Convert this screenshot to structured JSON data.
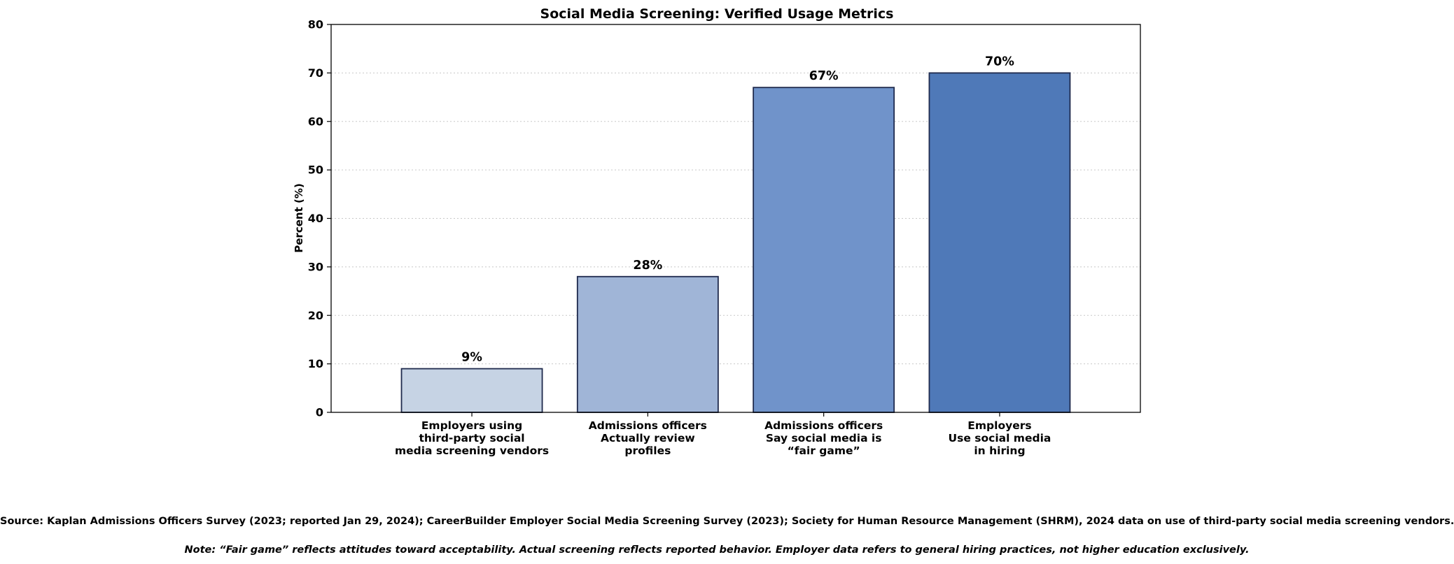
{
  "chart_data": {
    "type": "bar",
    "title": "Social Media Screening: Verified Usage Metrics",
    "xlabel": "",
    "ylabel": "Percent (%)",
    "ylim": [
      0,
      80
    ],
    "yticks": [
      0,
      10,
      20,
      30,
      40,
      50,
      60,
      70,
      80
    ],
    "grid": "y, dotted",
    "categories": [
      [
        "Employers using",
        "third-party social",
        "media screening vendors"
      ],
      [
        "Admissions officers",
        "Actually review",
        "profiles"
      ],
      [
        "Admissions officers",
        "Say social media is",
        "“fair game”"
      ],
      [
        "Employers",
        "Use social media",
        "in hiring"
      ]
    ],
    "values": [
      9,
      28,
      67,
      70
    ],
    "value_labels": [
      "9%",
      "28%",
      "67%",
      "70%"
    ],
    "colors": [
      "#c6d3e4",
      "#a0b5d7",
      "#7093ca",
      "#4f79b8"
    ],
    "edge_color": "#1f2a4d"
  },
  "footer": {
    "source": "Source: Kaplan Admissions Officers Survey (2023; reported Jan 29, 2024); CareerBuilder Employer Social Media Screening Survey (2023); Society for Human Resource Management (SHRM), 2024 data on use of third-party social media screening vendors.",
    "note": "Note: “Fair game” reflects attitudes toward acceptability. Actual screening reflects reported behavior. Employer data refers to general hiring practices, not higher education exclusively."
  }
}
